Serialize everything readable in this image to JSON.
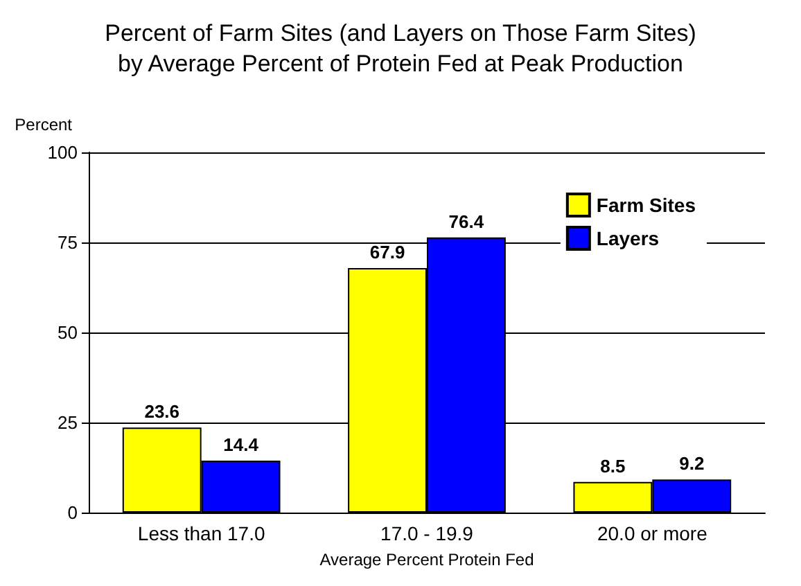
{
  "chart_data": {
    "type": "bar",
    "title": "Percent of Farm Sites (and Layers on Those Farm Sites)\nby Average Percent of Protein Fed at Peak Production",
    "xlabel": "Average Percent Protein Fed",
    "ylabel": "Percent",
    "categories": [
      "Less than 17.0",
      "17.0 - 19.9",
      "20.0 or more"
    ],
    "series": [
      {
        "name": "Farm Sites",
        "color": "#ffff00",
        "values": [
          23.6,
          67.9,
          8.5
        ]
      },
      {
        "name": "Layers",
        "color": "#0000ff",
        "values": [
          14.4,
          76.4,
          9.2
        ]
      }
    ],
    "ylim": [
      0,
      100
    ],
    "yticks": [
      0,
      25,
      50,
      75,
      100
    ],
    "grid": "y",
    "legend": "top right",
    "data_labels": true
  }
}
